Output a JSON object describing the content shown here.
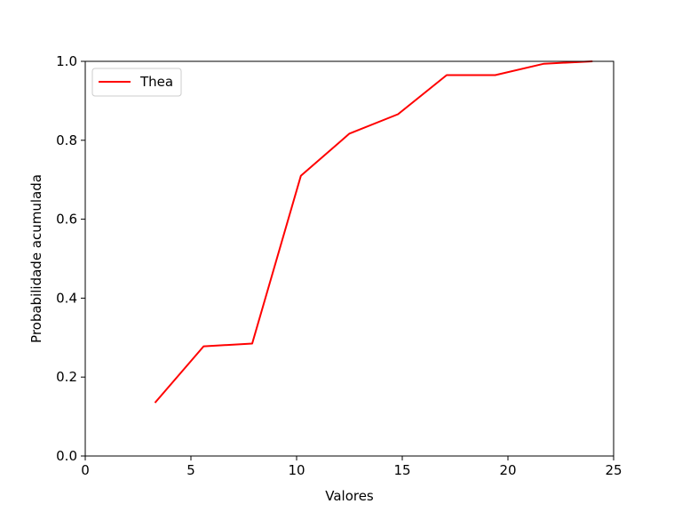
{
  "chart_data": {
    "type": "line",
    "xlabel": "Valores",
    "ylabel": "Probabilidade acumulada",
    "xlim": [
      0,
      25
    ],
    "ylim": [
      0,
      1
    ],
    "xticks": [
      0,
      5,
      10,
      15,
      20,
      25
    ],
    "yticks": [
      0,
      0.2,
      0.4,
      0.6,
      0.8,
      1.0
    ],
    "xtick_labels": [
      "0",
      "5",
      "10",
      "15",
      "20",
      "25"
    ],
    "ytick_labels": [
      "0.0",
      "0.2",
      "0.4",
      "0.6",
      "0.8",
      "1.0"
    ],
    "grid": false,
    "legend_position": "top-left",
    "series": [
      {
        "name": "Thea",
        "color": "#ff0000",
        "x": [
          3.3,
          5.6,
          7.9,
          10.2,
          12.5,
          14.8,
          17.1,
          19.4,
          21.7,
          24.0
        ],
        "y": [
          0.135,
          0.278,
          0.285,
          0.71,
          0.817,
          0.866,
          0.965,
          0.965,
          0.994,
          1.0
        ]
      }
    ]
  }
}
